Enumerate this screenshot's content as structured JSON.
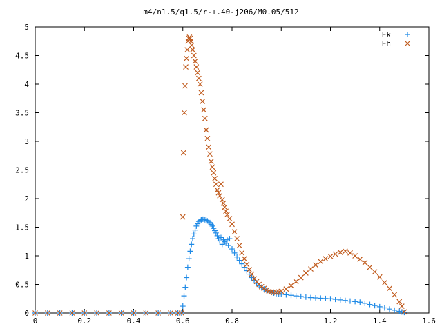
{
  "chart_data": {
    "type": "scatter",
    "title": "m4/n1.5/q1.5/r-+.40-j206/M0.05/512",
    "xlabel": "",
    "ylabel": "",
    "xlim": [
      0,
      1.6
    ],
    "ylim": [
      0,
      5
    ],
    "x_ticks": [
      0,
      0.2,
      0.4,
      0.6,
      0.8,
      1,
      1.2,
      1.4,
      1.6
    ],
    "x_tick_labels": [
      "0",
      "0.2",
      "0.4",
      "0.6",
      "0.8",
      "1",
      "1.2",
      "1.4",
      "1.6"
    ],
    "y_ticks": [
      0,
      0.5,
      1,
      1.5,
      2,
      2.5,
      3,
      3.5,
      4,
      4.5,
      5
    ],
    "y_tick_labels": [
      "0",
      "0.5",
      "1",
      "1.5",
      "2",
      "2.5",
      "3",
      "3.5",
      "4",
      "4.5",
      "5"
    ],
    "grid": false,
    "legend_position": "top-right",
    "series": [
      {
        "name": "Ek",
        "marker": "plus",
        "color": "#1f8ae6",
        "points": [
          [
            0,
            0
          ],
          [
            0.05,
            0
          ],
          [
            0.1,
            0
          ],
          [
            0.15,
            0
          ],
          [
            0.2,
            0
          ],
          [
            0.25,
            0
          ],
          [
            0.3,
            0
          ],
          [
            0.35,
            0
          ],
          [
            0.4,
            0
          ],
          [
            0.45,
            0
          ],
          [
            0.5,
            0
          ],
          [
            0.55,
            0
          ],
          [
            0.58,
            0
          ],
          [
            0.595,
            0
          ],
          [
            0.6,
            0.12
          ],
          [
            0.605,
            0.3
          ],
          [
            0.61,
            0.45
          ],
          [
            0.615,
            0.62
          ],
          [
            0.62,
            0.8
          ],
          [
            0.625,
            0.95
          ],
          [
            0.63,
            1.08
          ],
          [
            0.635,
            1.2
          ],
          [
            0.64,
            1.3
          ],
          [
            0.645,
            1.38
          ],
          [
            0.65,
            1.45
          ],
          [
            0.655,
            1.52
          ],
          [
            0.66,
            1.56
          ],
          [
            0.665,
            1.6
          ],
          [
            0.67,
            1.62
          ],
          [
            0.675,
            1.63
          ],
          [
            0.68,
            1.64
          ],
          [
            0.685,
            1.64
          ],
          [
            0.69,
            1.63
          ],
          [
            0.695,
            1.62
          ],
          [
            0.7,
            1.61
          ],
          [
            0.705,
            1.6
          ],
          [
            0.71,
            1.58
          ],
          [
            0.715,
            1.55
          ],
          [
            0.72,
            1.52
          ],
          [
            0.725,
            1.48
          ],
          [
            0.73,
            1.44
          ],
          [
            0.735,
            1.4
          ],
          [
            0.74,
            1.35
          ],
          [
            0.745,
            1.3
          ],
          [
            0.75,
            1.26
          ],
          [
            0.755,
            1.32
          ],
          [
            0.76,
            1.2
          ],
          [
            0.765,
            1.28
          ],
          [
            0.77,
            1.25
          ],
          [
            0.775,
            1.22
          ],
          [
            0.78,
            1.28
          ],
          [
            0.785,
            1.18
          ],
          [
            0.79,
            1.3
          ],
          [
            0.8,
            1.12
          ],
          [
            0.81,
            1.05
          ],
          [
            0.82,
            0.98
          ],
          [
            0.83,
            0.92
          ],
          [
            0.84,
            0.86
          ],
          [
            0.85,
            0.8
          ],
          [
            0.86,
            0.74
          ],
          [
            0.87,
            0.68
          ],
          [
            0.88,
            0.62
          ],
          [
            0.89,
            0.57
          ],
          [
            0.9,
            0.52
          ],
          [
            0.91,
            0.48
          ],
          [
            0.92,
            0.45
          ],
          [
            0.93,
            0.42
          ],
          [
            0.94,
            0.4
          ],
          [
            0.95,
            0.38
          ],
          [
            0.96,
            0.36
          ],
          [
            0.97,
            0.35
          ],
          [
            0.98,
            0.34
          ],
          [
            0.99,
            0.33
          ],
          [
            1.0,
            0.33
          ],
          [
            1.02,
            0.32
          ],
          [
            1.04,
            0.31
          ],
          [
            1.06,
            0.3
          ],
          [
            1.08,
            0.29
          ],
          [
            1.1,
            0.28
          ],
          [
            1.12,
            0.27
          ],
          [
            1.14,
            0.265
          ],
          [
            1.16,
            0.26
          ],
          [
            1.18,
            0.255
          ],
          [
            1.2,
            0.25
          ],
          [
            1.22,
            0.24
          ],
          [
            1.24,
            0.23
          ],
          [
            1.26,
            0.22
          ],
          [
            1.28,
            0.21
          ],
          [
            1.3,
            0.2
          ],
          [
            1.32,
            0.19
          ],
          [
            1.34,
            0.17
          ],
          [
            1.36,
            0.15
          ],
          [
            1.38,
            0.13
          ],
          [
            1.4,
            0.11
          ],
          [
            1.42,
            0.09
          ],
          [
            1.44,
            0.07
          ],
          [
            1.46,
            0.05
          ],
          [
            1.48,
            0.03
          ],
          [
            1.49,
            0.02
          ],
          [
            1.5,
            0.01
          ]
        ]
      },
      {
        "name": "Eh",
        "marker": "cross",
        "color": "#c05a1c",
        "points": [
          [
            0,
            0
          ],
          [
            0.05,
            0
          ],
          [
            0.1,
            0
          ],
          [
            0.15,
            0
          ],
          [
            0.2,
            0
          ],
          [
            0.25,
            0
          ],
          [
            0.3,
            0
          ],
          [
            0.35,
            0
          ],
          [
            0.4,
            0
          ],
          [
            0.45,
            0
          ],
          [
            0.5,
            0
          ],
          [
            0.55,
            0
          ],
          [
            0.58,
            0
          ],
          [
            0.595,
            0
          ],
          [
            0.6,
            1.68
          ],
          [
            0.603,
            2.8
          ],
          [
            0.606,
            3.5
          ],
          [
            0.609,
            3.97
          ],
          [
            0.612,
            4.3
          ],
          [
            0.615,
            4.45
          ],
          [
            0.618,
            4.6
          ],
          [
            0.621,
            4.75
          ],
          [
            0.624,
            4.8
          ],
          [
            0.627,
            4.82
          ],
          [
            0.63,
            4.8
          ],
          [
            0.633,
            4.75
          ],
          [
            0.636,
            4.68
          ],
          [
            0.64,
            4.6
          ],
          [
            0.645,
            4.5
          ],
          [
            0.65,
            4.4
          ],
          [
            0.655,
            4.3
          ],
          [
            0.66,
            4.2
          ],
          [
            0.665,
            4.1
          ],
          [
            0.67,
            4.0
          ],
          [
            0.675,
            3.85
          ],
          [
            0.68,
            3.7
          ],
          [
            0.685,
            3.55
          ],
          [
            0.69,
            3.4
          ],
          [
            0.695,
            3.2
          ],
          [
            0.7,
            3.05
          ],
          [
            0.705,
            2.9
          ],
          [
            0.71,
            2.78
          ],
          [
            0.715,
            2.65
          ],
          [
            0.72,
            2.55
          ],
          [
            0.725,
            2.45
          ],
          [
            0.73,
            2.35
          ],
          [
            0.735,
            2.25
          ],
          [
            0.74,
            2.15
          ],
          [
            0.745,
            2.1
          ],
          [
            0.75,
            2.05
          ],
          [
            0.755,
            2.25
          ],
          [
            0.76,
            1.98
          ],
          [
            0.765,
            1.92
          ],
          [
            0.77,
            1.85
          ],
          [
            0.775,
            1.78
          ],
          [
            0.78,
            1.72
          ],
          [
            0.79,
            1.65
          ],
          [
            0.8,
            1.55
          ],
          [
            0.81,
            1.42
          ],
          [
            0.82,
            1.3
          ],
          [
            0.83,
            1.18
          ],
          [
            0.84,
            1.05
          ],
          [
            0.85,
            0.95
          ],
          [
            0.86,
            0.85
          ],
          [
            0.87,
            0.76
          ],
          [
            0.88,
            0.68
          ],
          [
            0.89,
            0.6
          ],
          [
            0.9,
            0.55
          ],
          [
            0.91,
            0.5
          ],
          [
            0.92,
            0.46
          ],
          [
            0.93,
            0.43
          ],
          [
            0.94,
            0.4
          ],
          [
            0.95,
            0.38
          ],
          [
            0.96,
            0.37
          ],
          [
            0.97,
            0.36
          ],
          [
            0.98,
            0.36
          ],
          [
            0.99,
            0.37
          ],
          [
            1.0,
            0.38
          ],
          [
            1.02,
            0.42
          ],
          [
            1.04,
            0.48
          ],
          [
            1.06,
            0.55
          ],
          [
            1.08,
            0.62
          ],
          [
            1.1,
            0.7
          ],
          [
            1.12,
            0.77
          ],
          [
            1.14,
            0.84
          ],
          [
            1.16,
            0.9
          ],
          [
            1.18,
            0.95
          ],
          [
            1.2,
            0.99
          ],
          [
            1.22,
            1.03
          ],
          [
            1.24,
            1.06
          ],
          [
            1.26,
            1.08
          ],
          [
            1.28,
            1.05
          ],
          [
            1.3,
            1.0
          ],
          [
            1.32,
            0.94
          ],
          [
            1.34,
            0.88
          ],
          [
            1.36,
            0.8
          ],
          [
            1.38,
            0.72
          ],
          [
            1.4,
            0.63
          ],
          [
            1.42,
            0.53
          ],
          [
            1.44,
            0.43
          ],
          [
            1.46,
            0.32
          ],
          [
            1.48,
            0.2
          ],
          [
            1.49,
            0.12
          ],
          [
            1.5,
            0.02
          ]
        ]
      }
    ]
  }
}
